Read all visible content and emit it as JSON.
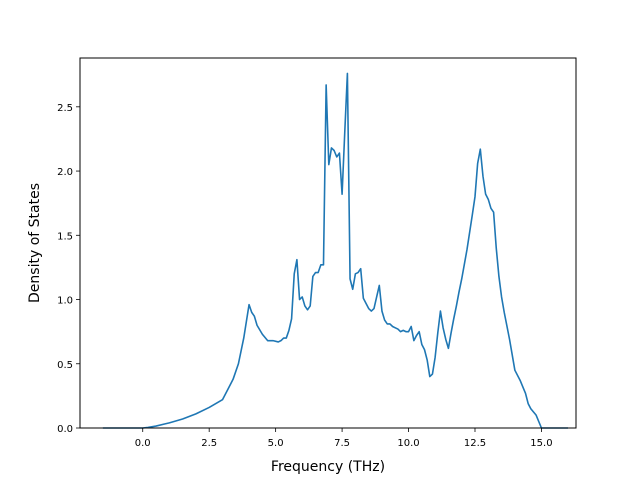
{
  "chart_data": {
    "type": "line",
    "title": "",
    "xlabel": "Frequency (THz)",
    "ylabel": "Density of States",
    "xlim": [
      -2.36,
      16.3
    ],
    "ylim": [
      0,
      2.88
    ],
    "xticks": [
      0.0,
      2.5,
      5.0,
      7.5,
      10.0,
      12.5,
      15.0
    ],
    "xtick_labels": [
      "0.0",
      "2.5",
      "5.0",
      "7.5",
      "10.0",
      "12.5",
      "15.0"
    ],
    "yticks": [
      0.0,
      0.5,
      1.0,
      1.5,
      2.0,
      2.5
    ],
    "ytick_labels": [
      "0.0",
      "0.5",
      "1.0",
      "1.5",
      "2.0",
      "2.5"
    ],
    "grid": false,
    "series": [
      {
        "color": "#1f77b4",
        "x": [
          -1.5,
          -1.0,
          -0.5,
          0.0,
          0.2,
          0.5,
          0.8,
          1.0,
          1.5,
          2.0,
          2.5,
          3.0,
          3.2,
          3.4,
          3.6,
          3.8,
          4.0,
          4.1,
          4.2,
          4.3,
          4.5,
          4.7,
          4.9,
          5.1,
          5.2,
          5.3,
          5.4,
          5.5,
          5.6,
          5.7,
          5.8,
          5.9,
          6.0,
          6.1,
          6.2,
          6.3,
          6.4,
          6.5,
          6.6,
          6.7,
          6.8,
          6.9,
          7.0,
          7.1,
          7.2,
          7.3,
          7.4,
          7.5,
          7.6,
          7.7,
          7.8,
          7.9,
          8.0,
          8.1,
          8.2,
          8.3,
          8.4,
          8.5,
          8.6,
          8.7,
          8.8,
          8.9,
          9.0,
          9.1,
          9.2,
          9.3,
          9.4,
          9.5,
          9.6,
          9.7,
          9.8,
          9.9,
          10.0,
          10.1,
          10.2,
          10.3,
          10.4,
          10.5,
          10.6,
          10.7,
          10.8,
          10.9,
          11.0,
          11.1,
          11.2,
          11.3,
          11.4,
          11.5,
          11.6,
          11.7,
          11.8,
          11.9,
          12.0,
          12.2,
          12.4,
          12.5,
          12.6,
          12.7,
          12.8,
          12.9,
          13.0,
          13.1,
          13.2,
          13.3,
          13.4,
          13.5,
          13.6,
          13.8,
          14.0,
          14.2,
          14.3,
          14.4,
          14.5,
          14.6,
          14.8,
          15.0,
          15.5,
          16.0
        ],
        "values": [
          0.0,
          0.0,
          0.0,
          0.0,
          0.005,
          0.015,
          0.03,
          0.04,
          0.07,
          0.11,
          0.16,
          0.22,
          0.3,
          0.38,
          0.5,
          0.7,
          0.96,
          0.9,
          0.87,
          0.8,
          0.73,
          0.68,
          0.68,
          0.67,
          0.68,
          0.7,
          0.7,
          0.76,
          0.85,
          1.2,
          1.31,
          1.0,
          1.02,
          0.95,
          0.92,
          0.95,
          1.18,
          1.21,
          1.21,
          1.27,
          1.27,
          2.67,
          2.05,
          2.18,
          2.16,
          2.11,
          2.14,
          1.82,
          2.3,
          2.76,
          1.16,
          1.08,
          1.2,
          1.21,
          1.24,
          1.01,
          0.97,
          0.93,
          0.91,
          0.93,
          1.02,
          1.11,
          0.91,
          0.84,
          0.81,
          0.81,
          0.79,
          0.78,
          0.77,
          0.75,
          0.76,
          0.75,
          0.75,
          0.79,
          0.68,
          0.72,
          0.75,
          0.65,
          0.61,
          0.53,
          0.4,
          0.42,
          0.55,
          0.74,
          0.91,
          0.78,
          0.69,
          0.62,
          0.74,
          0.85,
          0.95,
          1.06,
          1.16,
          1.39,
          1.66,
          1.8,
          2.06,
          2.17,
          1.96,
          1.82,
          1.78,
          1.71,
          1.68,
          1.4,
          1.18,
          1.02,
          0.9,
          0.69,
          0.45,
          0.37,
          0.32,
          0.27,
          0.19,
          0.15,
          0.1,
          0.0,
          0.0,
          0.0
        ]
      }
    ]
  }
}
